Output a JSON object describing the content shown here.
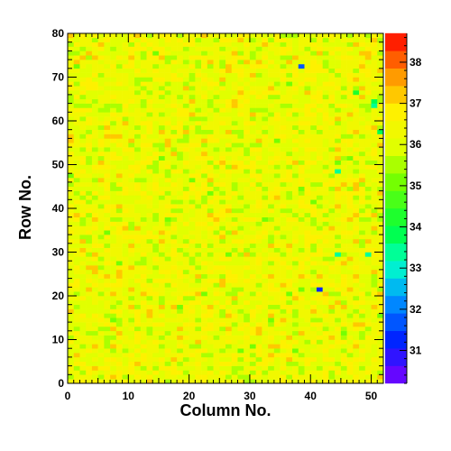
{
  "chart_data": {
    "type": "heatmap",
    "title": "",
    "xlabel": "Column No.",
    "ylabel": "Row No.",
    "xlim": [
      0,
      52
    ],
    "ylim": [
      0,
      80
    ],
    "x_ticks": [
      0,
      10,
      20,
      30,
      40,
      50
    ],
    "y_ticks": [
      0,
      10,
      20,
      30,
      40,
      50,
      60,
      70,
      80
    ],
    "n_columns": 52,
    "n_rows": 80,
    "z_range": [
      30.2,
      38.7
    ],
    "colorbar_ticks": [
      31,
      32,
      33,
      34,
      35,
      36,
      37,
      38
    ],
    "typical_value_range": [
      34.8,
      37.3
    ],
    "notable_low_cells": [
      {
        "column": 38,
        "row": 72,
        "value": 31.8
      },
      {
        "column": 41,
        "row": 21,
        "value": 31.2
      },
      {
        "column": 44,
        "row": 29,
        "value": 33.3
      },
      {
        "column": 49,
        "row": 29,
        "value": 33.5
      },
      {
        "column": 44,
        "row": 48,
        "value": 33.4
      },
      {
        "column": 50,
        "row": 64,
        "value": 33.6
      },
      {
        "column": 50,
        "row": 63,
        "value": 33.5
      },
      {
        "column": 47,
        "row": 66,
        "value": 34.3
      },
      {
        "column": 51,
        "row": 57,
        "value": 34.0
      }
    ],
    "grid": false,
    "legend": "colorbar-right"
  }
}
